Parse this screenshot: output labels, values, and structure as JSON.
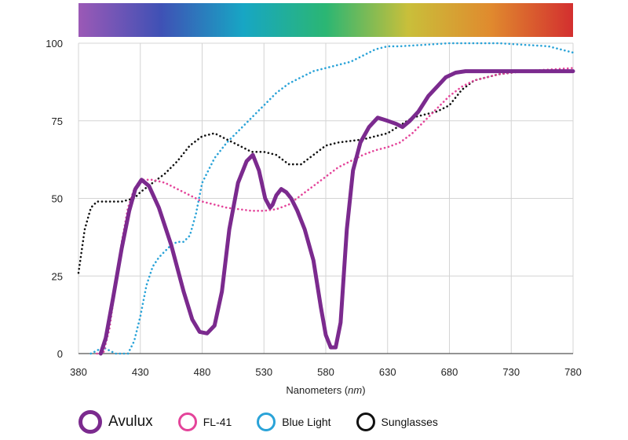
{
  "chart_data": {
    "type": "line",
    "xlabel_prefix": "Nanometers (",
    "xlabel_unit": "nm",
    "xlabel_suffix": ")",
    "xlim": [
      380,
      780
    ],
    "ylim": [
      0,
      100
    ],
    "xticks": [
      380,
      430,
      480,
      530,
      580,
      630,
      680,
      730,
      780
    ],
    "yticks": [
      0,
      25,
      50,
      75,
      100
    ],
    "grid": true,
    "spectrum_colors": [
      "#9b59b6",
      "#3f51b5",
      "#17a6c4",
      "#2bb673",
      "#c9bf3a",
      "#e08a2e",
      "#d32f2f"
    ],
    "series": [
      {
        "name": "Avulux",
        "color": "#7b2a8e",
        "style": "solid",
        "x": [
          398,
          402,
          408,
          415,
          421,
          426,
          431,
          437,
          445,
          455,
          465,
          472,
          478,
          484,
          490,
          496,
          502,
          509,
          516,
          521,
          526,
          531,
          535,
          537,
          540,
          544,
          548,
          552,
          557,
          563,
          570,
          576,
          580,
          584,
          588,
          592,
          597,
          602,
          608,
          615,
          622,
          630,
          637,
          642,
          648,
          655,
          663,
          670,
          677,
          685,
          693,
          702,
          712,
          725,
          740,
          760,
          780
        ],
        "values": [
          0,
          5,
          18,
          34,
          46,
          53,
          56,
          54,
          47,
          35,
          20,
          11,
          7,
          6.5,
          9,
          20,
          40,
          55,
          62,
          64,
          59,
          50,
          47,
          48,
          51,
          53,
          52,
          50,
          46,
          40,
          30,
          15,
          6,
          2,
          2,
          10,
          40,
          59,
          68,
          73,
          76,
          75,
          74,
          73,
          75,
          78,
          83,
          86,
          89,
          90.5,
          91,
          91,
          91,
          91,
          91,
          91,
          91
        ]
      },
      {
        "name": "FL-41",
        "color": "#e4449a",
        "style": "dotted",
        "x": [
          395,
          400,
          405,
          410,
          415,
          420,
          425,
          430,
          440,
          450,
          460,
          470,
          480,
          490,
          500,
          510,
          520,
          530,
          540,
          550,
          560,
          570,
          580,
          590,
          600,
          610,
          620,
          630,
          640,
          650,
          660,
          670,
          680,
          690,
          700,
          720,
          740,
          760,
          780
        ],
        "values": [
          0,
          0,
          8,
          22,
          36,
          47,
          53,
          56,
          56,
          55,
          53,
          51,
          49,
          48,
          47,
          46.5,
          46,
          46,
          46.5,
          48,
          51,
          54,
          57,
          60,
          62,
          64,
          65.5,
          66.5,
          68,
          71,
          75,
          79,
          83,
          86,
          88,
          90,
          91,
          91.5,
          92
        ]
      },
      {
        "name": "Blue Light",
        "color": "#2aa3d8",
        "style": "dotted",
        "x": [
          390,
          395,
          400,
          405,
          410,
          415,
          420,
          425,
          430,
          435,
          440,
          445,
          450,
          455,
          460,
          465,
          470,
          475,
          480,
          490,
          500,
          510,
          520,
          530,
          540,
          550,
          560,
          570,
          580,
          590,
          600,
          610,
          620,
          630,
          640,
          660,
          680,
          700,
          720,
          740,
          760,
          780
        ],
        "values": [
          0,
          1,
          2,
          1,
          0,
          0,
          0,
          4,
          12,
          22,
          28,
          31,
          33,
          35,
          36,
          36,
          38,
          45,
          55,
          63,
          68,
          72,
          76,
          80,
          84,
          87,
          89,
          91,
          92,
          93,
          94,
          96,
          98,
          99,
          99,
          99.5,
          100,
          100,
          100,
          99.5,
          99,
          97
        ]
      },
      {
        "name": "Sunglasses",
        "color": "#111111",
        "style": "dotted",
        "x": [
          380,
          385,
          390,
          395,
          400,
          405,
          410,
          415,
          420,
          425,
          430,
          440,
          450,
          460,
          470,
          480,
          490,
          500,
          510,
          520,
          530,
          540,
          550,
          560,
          570,
          580,
          590,
          600,
          610,
          620,
          630,
          640,
          650,
          660,
          670,
          680,
          690,
          700,
          720,
          740,
          760,
          780
        ],
        "values": [
          26,
          40,
          47,
          49,
          49,
          49,
          49,
          49,
          49.5,
          50,
          52,
          55,
          58,
          62,
          67,
          70,
          71,
          69,
          67,
          65,
          65,
          64,
          61,
          61,
          64,
          67,
          68,
          68.5,
          69,
          70,
          71,
          73.5,
          76,
          77,
          78,
          80,
          85,
          88,
          90,
          91,
          91,
          91
        ]
      }
    ]
  },
  "legend": [
    {
      "name": "Avulux",
      "color": "#7b2a8e",
      "size": "big"
    },
    {
      "name": "FL-41",
      "color": "#e4449a",
      "size": "small"
    },
    {
      "name": "Blue Light",
      "color": "#2aa3d8",
      "size": "small"
    },
    {
      "name": "Sunglasses",
      "color": "#111111",
      "size": "small"
    }
  ]
}
